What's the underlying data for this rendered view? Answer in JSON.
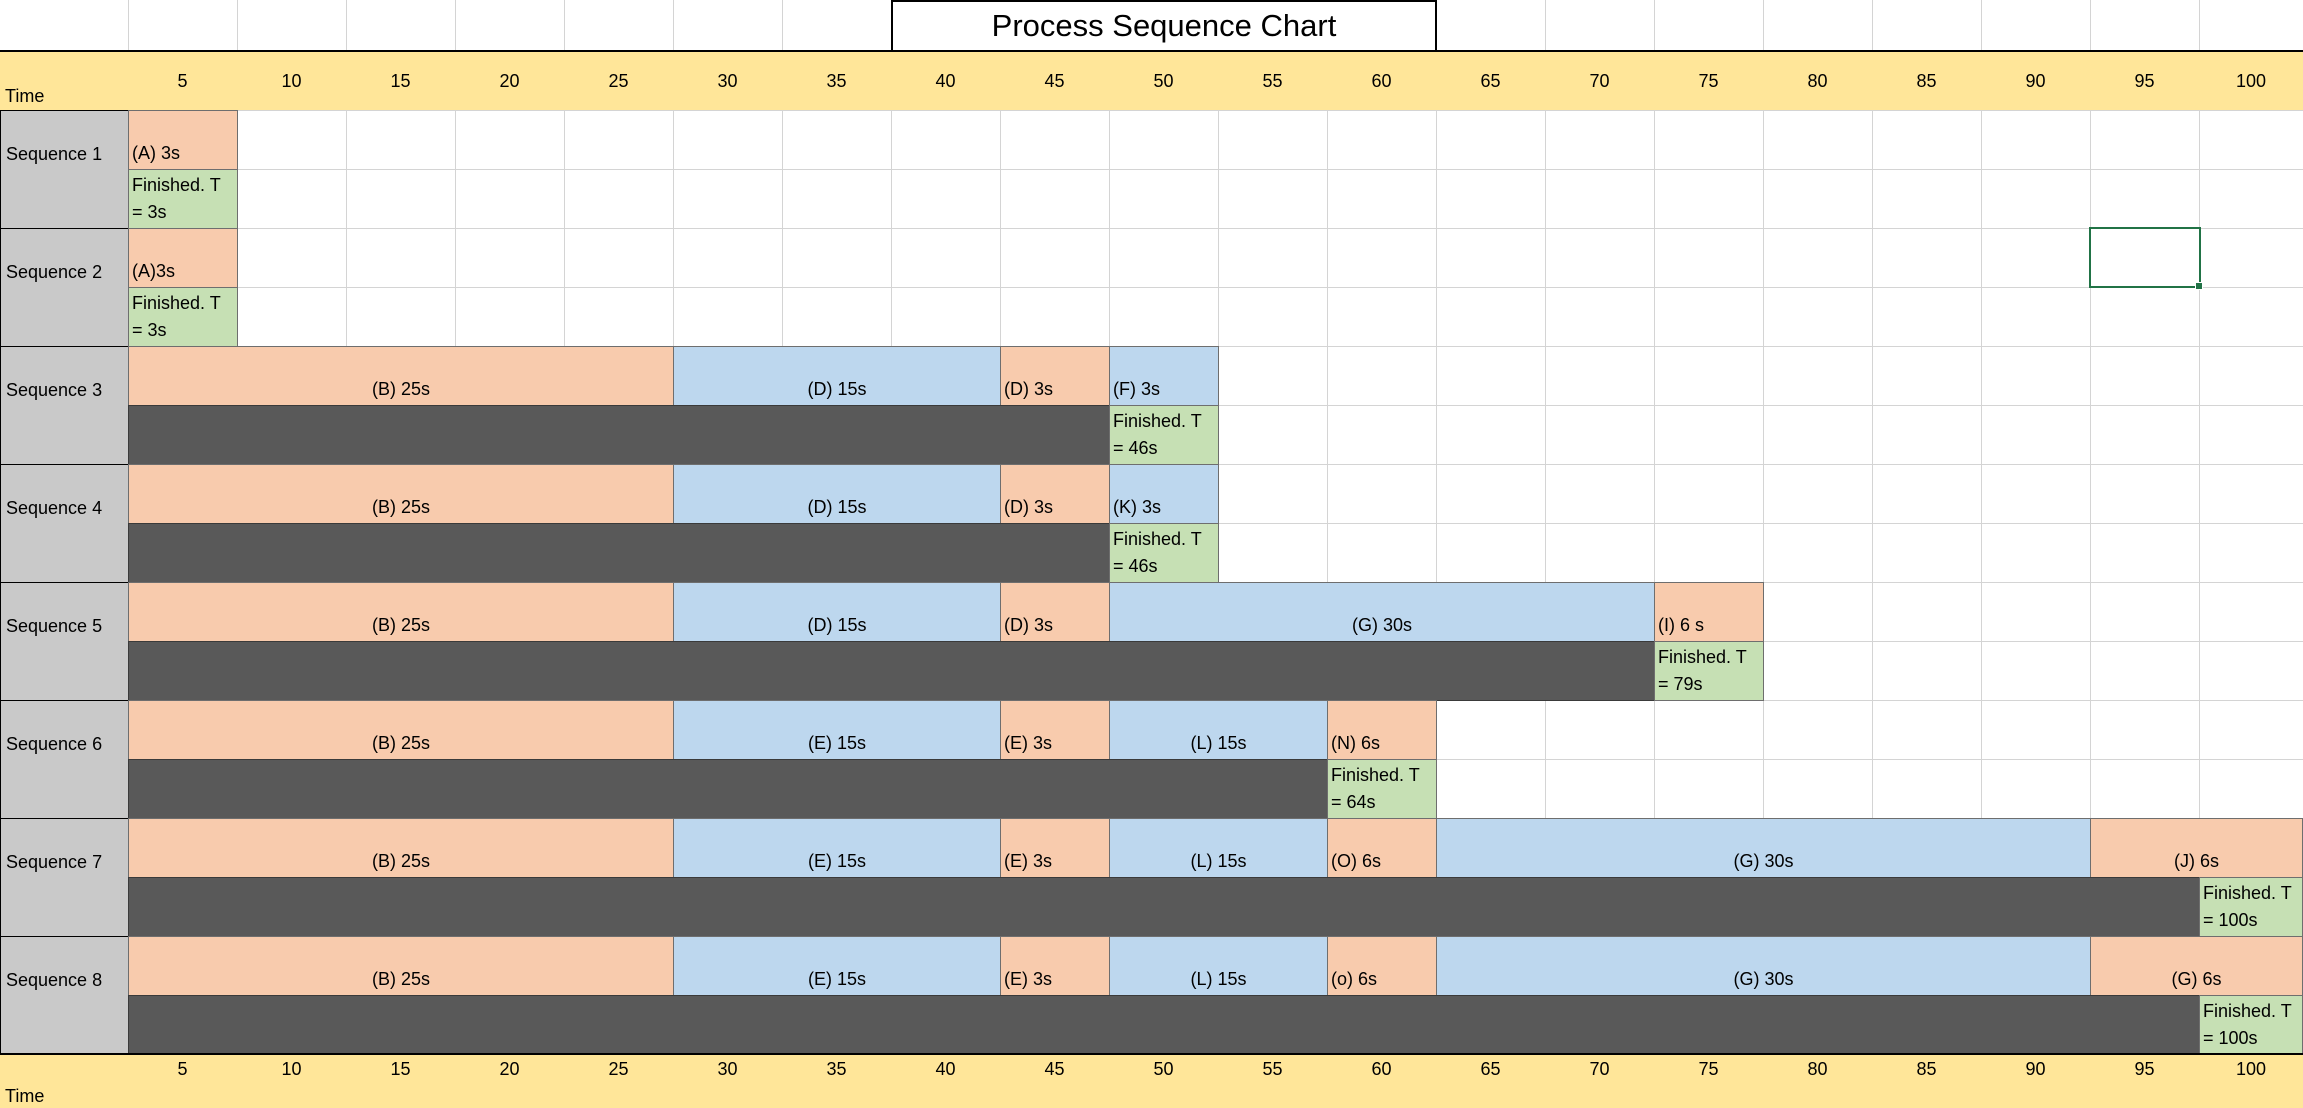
{
  "sheet": {
    "title": "Process Sequence Chart",
    "time_label": "Time",
    "time_ticks": [
      5,
      10,
      15,
      20,
      25,
      30,
      35,
      40,
      45,
      50,
      55,
      60,
      65,
      70,
      75,
      80,
      85,
      90,
      95,
      100
    ],
    "colors": {
      "header": "#FFE699",
      "label": "#C9C9C9",
      "orange": "#F8CBAD",
      "blue": "#BDD7EE",
      "green": "#C6E0B4",
      "dark": "#595959",
      "selection": "#217346"
    },
    "sequences": [
      {
        "label": "Sequence 1",
        "tasks": [
          {
            "text": "(A) 3s",
            "from": 5,
            "to": 5,
            "fill": "orange"
          }
        ],
        "finished": {
          "text": "Finished. T = 3s",
          "at": 5
        }
      },
      {
        "label": "Sequence 2",
        "tasks": [
          {
            "text": "(A)3s",
            "from": 5,
            "to": 5,
            "fill": "orange"
          }
        ],
        "finished": {
          "text": "Finished. T = 3s",
          "at": 5
        }
      },
      {
        "label": "Sequence 3",
        "tasks": [
          {
            "text": "(B) 25s",
            "from": 5,
            "to": 25,
            "fill": "orange"
          },
          {
            "text": "(D) 15s",
            "from": 30,
            "to": 40,
            "fill": "blue"
          },
          {
            "text": "(D) 3s",
            "from": 45,
            "to": 45,
            "fill": "orange"
          },
          {
            "text": "(F) 3s",
            "from": 50,
            "to": 50,
            "fill": "blue"
          }
        ],
        "finished": {
          "text": "Finished. T = 46s",
          "at": 50
        }
      },
      {
        "label": "Sequence 4",
        "tasks": [
          {
            "text": "(B) 25s",
            "from": 5,
            "to": 25,
            "fill": "orange"
          },
          {
            "text": "(D) 15s",
            "from": 30,
            "to": 40,
            "fill": "blue"
          },
          {
            "text": "(D) 3s",
            "from": 45,
            "to": 45,
            "fill": "orange"
          },
          {
            "text": "(K) 3s",
            "from": 50,
            "to": 50,
            "fill": "blue"
          }
        ],
        "finished": {
          "text": "Finished. T = 46s",
          "at": 50
        }
      },
      {
        "label": "Sequence 5",
        "tasks": [
          {
            "text": "(B) 25s",
            "from": 5,
            "to": 25,
            "fill": "orange"
          },
          {
            "text": "(D) 15s",
            "from": 30,
            "to": 40,
            "fill": "blue"
          },
          {
            "text": "(D) 3s",
            "from": 45,
            "to": 45,
            "fill": "orange"
          },
          {
            "text": "(G) 30s",
            "from": 50,
            "to": 70,
            "fill": "blue"
          },
          {
            "text": "(I) 6 s",
            "from": 75,
            "to": 75,
            "fill": "orange"
          }
        ],
        "finished": {
          "text": "Finished. T = 79s",
          "at": 75
        }
      },
      {
        "label": "Sequence 6",
        "tasks": [
          {
            "text": "(B) 25s",
            "from": 5,
            "to": 25,
            "fill": "orange"
          },
          {
            "text": "(E) 15s",
            "from": 30,
            "to": 40,
            "fill": "blue"
          },
          {
            "text": "(E) 3s",
            "from": 45,
            "to": 45,
            "fill": "orange"
          },
          {
            "text": "(L) 15s",
            "from": 50,
            "to": 55,
            "fill": "blue"
          },
          {
            "text": "(N) 6s",
            "from": 60,
            "to": 60,
            "fill": "orange"
          }
        ],
        "finished": {
          "text": "Finished. T = 64s",
          "at": 60
        }
      },
      {
        "label": "Sequence 7",
        "tasks": [
          {
            "text": "(B) 25s",
            "from": 5,
            "to": 25,
            "fill": "orange"
          },
          {
            "text": "(E) 15s",
            "from": 30,
            "to": 40,
            "fill": "blue"
          },
          {
            "text": "(E) 3s",
            "from": 45,
            "to": 45,
            "fill": "orange"
          },
          {
            "text": "(L) 15s",
            "from": 50,
            "to": 55,
            "fill": "blue"
          },
          {
            "text": "(O) 6s",
            "from": 60,
            "to": 60,
            "fill": "orange"
          },
          {
            "text": "(G) 30s",
            "from": 65,
            "to": 90,
            "fill": "blue"
          },
          {
            "text": "(J) 6s",
            "from": 95,
            "to": 100,
            "fill": "orange"
          }
        ],
        "finished": {
          "text": "Finished. T = 100s",
          "at": 100
        }
      },
      {
        "label": "Sequence 8",
        "tasks": [
          {
            "text": "(B) 25s",
            "from": 5,
            "to": 25,
            "fill": "orange"
          },
          {
            "text": "(E) 15s",
            "from": 30,
            "to": 40,
            "fill": "blue"
          },
          {
            "text": "(E) 3s",
            "from": 45,
            "to": 45,
            "fill": "orange"
          },
          {
            "text": "(L) 15s",
            "from": 50,
            "to": 55,
            "fill": "blue"
          },
          {
            "text": "(o) 6s",
            "from": 60,
            "to": 60,
            "fill": "orange"
          },
          {
            "text": "(G) 30s",
            "from": 65,
            "to": 90,
            "fill": "blue"
          },
          {
            "text": "(G) 6s",
            "from": 95,
            "to": 100,
            "fill": "orange"
          }
        ],
        "finished": {
          "text": "Finished. T = 100s",
          "at": 100
        }
      }
    ]
  }
}
